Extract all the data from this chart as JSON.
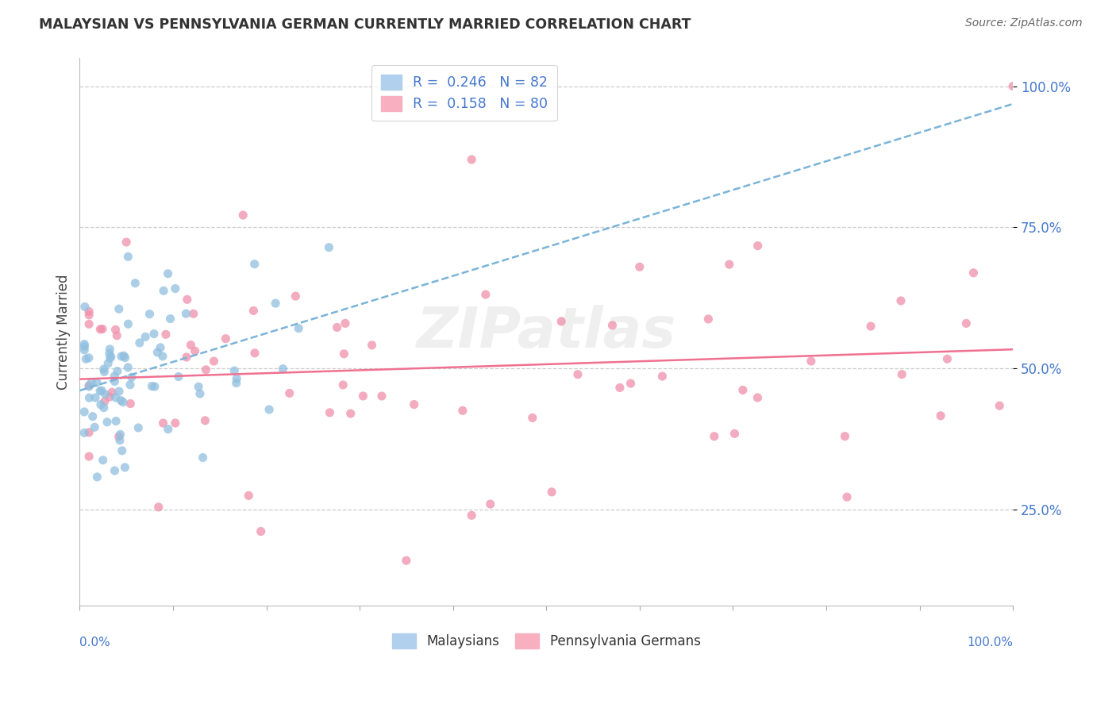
{
  "title": "MALAYSIAN VS PENNSYLVANIA GERMAN CURRENTLY MARRIED CORRELATION CHART",
  "source": "Source: ZipAtlas.com",
  "ylabel": "Currently Married",
  "ytick_positions": [
    0.25,
    0.5,
    0.75,
    1.0
  ],
  "ytick_labels": [
    "25.0%",
    "50.0%",
    "75.0%",
    "100.0%"
  ],
  "xlim": [
    0.0,
    1.0
  ],
  "ylim": [
    0.08,
    1.05
  ],
  "blue_color": "#7ab4d8",
  "pink_color": "#f07090",
  "blue_scatter_color": "#90c0e0",
  "pink_scatter_color": "#f090aa",
  "blue_R": "0.246",
  "blue_N": "82",
  "pink_R": "0.158",
  "pink_N": "80",
  "watermark_text": "ZIPatlas",
  "legend_blue_patch": "#b0d0ee",
  "legend_pink_patch": "#f8b0c0"
}
